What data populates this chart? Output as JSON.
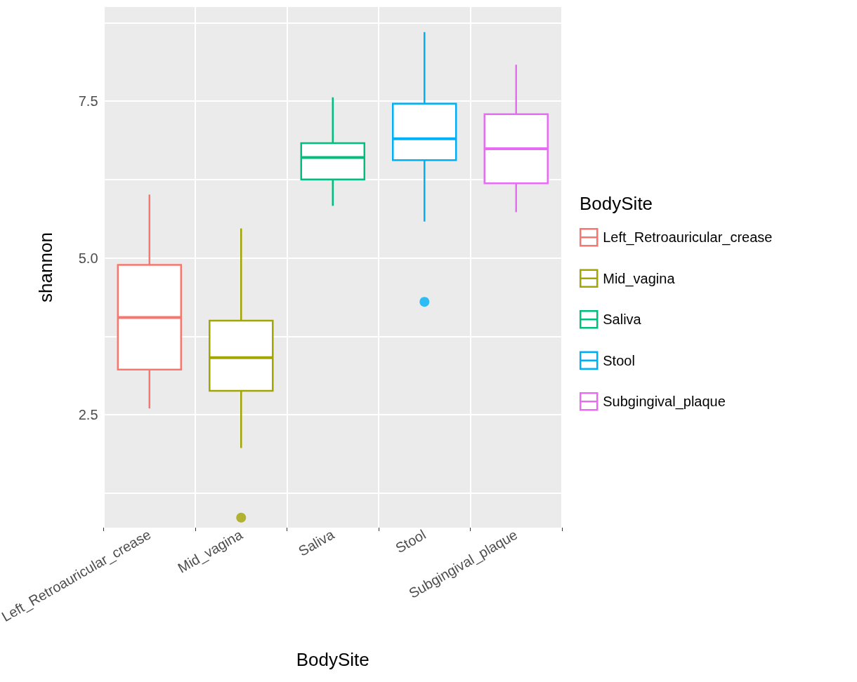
{
  "chart_data": {
    "type": "box",
    "xlabel": "BodySite",
    "ylabel": "shannon",
    "legend_title": "BodySite",
    "categories": [
      "Left_Retroauricular_crease",
      "Mid_vagina",
      "Saliva",
      "Stool",
      "Subgingival_plaque"
    ],
    "series": [
      {
        "name": "Left_Retroauricular_crease",
        "color": "#f8766d",
        "boxes": [
          {
            "low": 2.6,
            "q1": 3.22,
            "median": 4.05,
            "q3": 4.89,
            "high": 6.01
          },
          null,
          null,
          null,
          null
        ]
      },
      {
        "name": "Mid_vagina",
        "color": "#a3a500",
        "boxes": [
          null,
          {
            "low": 1.97,
            "q1": 2.88,
            "median": 3.41,
            "q3": 4.0,
            "high": 5.47,
            "outliers": [
              0.86
            ]
          },
          null,
          null,
          null
        ]
      },
      {
        "name": "Saliva",
        "color": "#00bf7d",
        "boxes": [
          null,
          null,
          {
            "low": 5.83,
            "q1": 6.25,
            "median": 6.6,
            "q3": 6.83,
            "high": 7.56
          },
          null,
          null
        ]
      },
      {
        "name": "Stool",
        "color": "#00b0f6",
        "boxes": [
          null,
          null,
          null,
          {
            "low": 5.58,
            "q1": 6.56,
            "median": 6.9,
            "q3": 7.46,
            "high": 8.6,
            "outliers": [
              4.3
            ]
          },
          null
        ]
      },
      {
        "name": "Subgingival_plaque",
        "color": "#e76bf3",
        "boxes": [
          null,
          null,
          null,
          null,
          {
            "low": 5.73,
            "q1": 6.19,
            "median": 6.74,
            "q3": 7.29,
            "high": 8.08
          }
        ]
      }
    ],
    "ylim": [
      0.7,
      9.0
    ],
    "yticks": [
      {
        "value": 1.25,
        "label": null
      },
      2.5,
      {
        "value": 3.75,
        "label": null
      },
      {
        "value": 5,
        "label": "5.0"
      },
      {
        "value": 6.25,
        "label": null
      },
      7.5,
      {
        "value": 8.75,
        "label": null
      }
    ],
    "grid": true,
    "legend": "right"
  }
}
